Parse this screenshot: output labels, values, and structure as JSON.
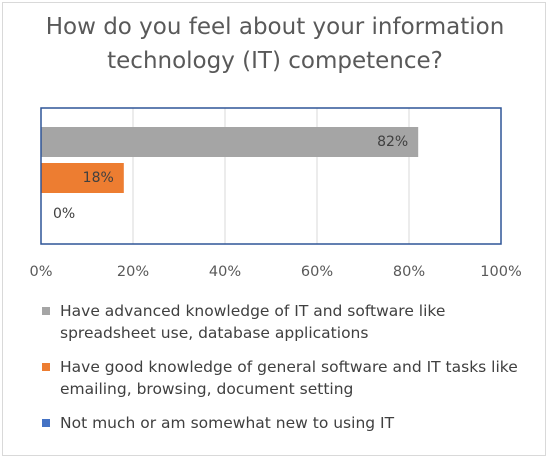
{
  "chart_data": {
    "type": "bar",
    "orientation": "horizontal",
    "title": "How do you feel about your information technology (IT) competence?",
    "xlim": [
      0,
      100
    ],
    "x_ticks": [
      "0%",
      "20%",
      "40%",
      "60%",
      "80%",
      "100%"
    ],
    "grid": true,
    "legend_position": "bottom",
    "series": [
      {
        "name": "Have advanced knowledge of IT and software like spreadsheet use, database applications",
        "value": 82,
        "label": "82%",
        "color": "#a5a5a5"
      },
      {
        "name": "Have good knowledge of general software and IT tasks like emailing, browsing, document setting",
        "value": 18,
        "label": "18%",
        "color": "#ed7d31"
      },
      {
        "name": "Not much or am somewhat new to using IT",
        "value": 0,
        "label": "0%",
        "color": "#4472c4"
      }
    ]
  }
}
